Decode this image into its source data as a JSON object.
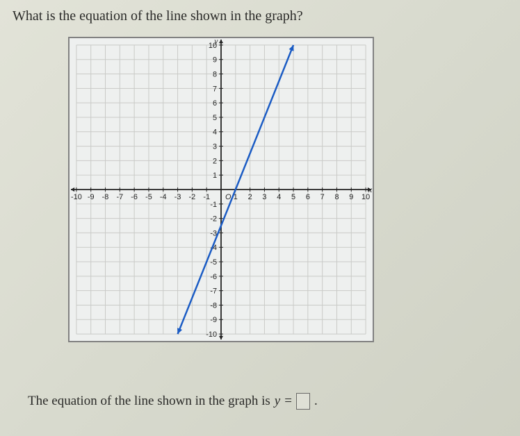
{
  "question_text": "What is the equation of the line shown in the graph?",
  "answer_prefix": "The equation of the line shown in the graph is",
  "answer_var_left": "y",
  "answer_equals": "=",
  "answer_period": ".",
  "graph": {
    "type": "line",
    "xlim": [
      -10,
      10
    ],
    "ylim": [
      -10,
      10
    ],
    "xtick_step": 1,
    "ytick_step": 1,
    "x_axis_label": "x",
    "y_axis_label": "y",
    "background_color": "#eef0ef",
    "grid_color": "#c9cac7",
    "grid_color_outer": "#818181",
    "axis_color": "#222222",
    "tick_font_size": 11,
    "line": {
      "color": "#1a5bc4",
      "width": 2.5,
      "points": [
        [
          -3,
          -10
        ],
        [
          5,
          10
        ]
      ],
      "arrow_start": true,
      "arrow_end": true
    }
  }
}
